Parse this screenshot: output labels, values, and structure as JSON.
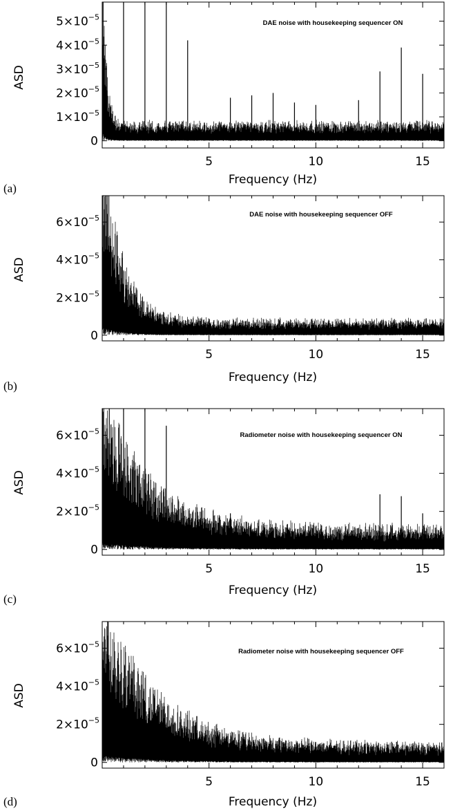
{
  "chart_data": [
    {
      "type": "line",
      "panel_label": "(a)",
      "title": "DAE noise with housekeeping sequencer ON",
      "xlabel": "Frequency (Hz)",
      "ylabel": "ASD",
      "xlim": [
        0,
        16
      ],
      "ylim": [
        -3e-06,
        5.8e-05
      ],
      "x_ticks": [
        {
          "value": 5,
          "label": "5"
        },
        {
          "value": 10,
          "label": "10"
        },
        {
          "value": 15,
          "label": "15"
        }
      ],
      "y_ticks": [
        {
          "value": 0,
          "mant": "0",
          "exp": ""
        },
        {
          "value": 1e-05,
          "mant": "1×10",
          "exp": "−5"
        },
        {
          "value": 2e-05,
          "mant": "2×10",
          "exp": "−5"
        },
        {
          "value": 3e-05,
          "mant": "3×10",
          "exp": "−5"
        },
        {
          "value": 4e-05,
          "mant": "4×10",
          "exp": "−5"
        },
        {
          "value": 5e-05,
          "mant": "5×10",
          "exp": "−5"
        }
      ],
      "noise": {
        "low_f_peak": 6.5e-05,
        "decay_scale_hz": 0.18,
        "floor": 5e-06,
        "floor_spread": 2.5e-06
      },
      "spikes": [
        {
          "x": 1,
          "y": 5.8e-05
        },
        {
          "x": 2,
          "y": 5.8e-05
        },
        {
          "x": 3,
          "y": 5.8e-05
        },
        {
          "x": 4,
          "y": 4.2e-05
        },
        {
          "x": 6,
          "y": 1.8e-05
        },
        {
          "x": 7,
          "y": 1.9e-05
        },
        {
          "x": 8,
          "y": 2e-05
        },
        {
          "x": 9,
          "y": 1.6e-05
        },
        {
          "x": 10,
          "y": 1.5e-05
        },
        {
          "x": 12,
          "y": 1.7e-05
        },
        {
          "x": 13,
          "y": 2.9e-05
        },
        {
          "x": 14,
          "y": 3.9e-05
        },
        {
          "x": 15,
          "y": 2.8e-05
        }
      ]
    },
    {
      "type": "line",
      "panel_label": "(b)",
      "title": "DAE noise with housekeeping sequencer OFF",
      "xlabel": "Frequency (Hz)",
      "ylabel": "ASD",
      "xlim": [
        0,
        16
      ],
      "ylim": [
        -3e-06,
        7.4e-05
      ],
      "x_ticks": [
        {
          "value": 5,
          "label": "5"
        },
        {
          "value": 10,
          "label": "10"
        },
        {
          "value": 15,
          "label": "15"
        }
      ],
      "y_ticks": [
        {
          "value": 0,
          "mant": "0",
          "exp": ""
        },
        {
          "value": 2e-05,
          "mant": "2×10",
          "exp": "−5"
        },
        {
          "value": 4e-05,
          "mant": "4×10",
          "exp": "−5"
        },
        {
          "value": 6e-05,
          "mant": "6×10",
          "exp": "−5"
        }
      ],
      "noise": {
        "low_f_peak": 8e-05,
        "decay_scale_hz": 0.9,
        "floor": 5e-06,
        "floor_spread": 3e-06
      },
      "spikes": []
    },
    {
      "type": "line",
      "panel_label": "(c)",
      "title": "Radiometer noise with housekeeping sequencer ON",
      "xlabel": "Frequency (Hz)",
      "ylabel": "ASD",
      "xlim": [
        0,
        16
      ],
      "ylim": [
        -3e-06,
        7.4e-05
      ],
      "x_ticks": [
        {
          "value": 5,
          "label": "5"
        },
        {
          "value": 10,
          "label": "10"
        },
        {
          "value": 15,
          "label": "15"
        }
      ],
      "y_ticks": [
        {
          "value": 0,
          "mant": "0",
          "exp": ""
        },
        {
          "value": 2e-05,
          "mant": "2×10",
          "exp": "−5"
        },
        {
          "value": 4e-05,
          "mant": "4×10",
          "exp": "−5"
        },
        {
          "value": 6e-05,
          "mant": "6×10",
          "exp": "−5"
        }
      ],
      "noise": {
        "low_f_peak": 6e-05,
        "decay_scale_hz": 2.2,
        "floor": 7e-06,
        "floor_spread": 5e-06
      },
      "spikes": [
        {
          "x": 1,
          "y": 7.4e-05
        },
        {
          "x": 2,
          "y": 7.4e-05
        },
        {
          "x": 3,
          "y": 6.5e-05
        },
        {
          "x": 6,
          "y": 1.9e-05
        },
        {
          "x": 13,
          "y": 2.9e-05
        },
        {
          "x": 14,
          "y": 2.8e-05
        },
        {
          "x": 15,
          "y": 1.9e-05
        }
      ]
    },
    {
      "type": "line",
      "panel_label": "(d)",
      "title": "Radiometer noise with housekeeping sequencer OFF",
      "xlabel": "Frequency (Hz)",
      "ylabel": "ASD",
      "xlim": [
        0,
        16
      ],
      "ylim": [
        -3e-06,
        7.4e-05
      ],
      "x_ticks": [
        {
          "value": 5,
          "label": "5"
        },
        {
          "value": 10,
          "label": "10"
        },
        {
          "value": 15,
          "label": "15"
        }
      ],
      "y_ticks": [
        {
          "value": 0,
          "mant": "0",
          "exp": ""
        },
        {
          "value": 2e-05,
          "mant": "2×10",
          "exp": "−5"
        },
        {
          "value": 4e-05,
          "mant": "4×10",
          "exp": "−5"
        },
        {
          "value": 6e-05,
          "mant": "6×10",
          "exp": "−5"
        }
      ],
      "noise": {
        "low_f_peak": 6.5e-05,
        "decay_scale_hz": 2.4,
        "floor": 6e-06,
        "floor_spread": 4e-06
      },
      "spikes": []
    }
  ]
}
